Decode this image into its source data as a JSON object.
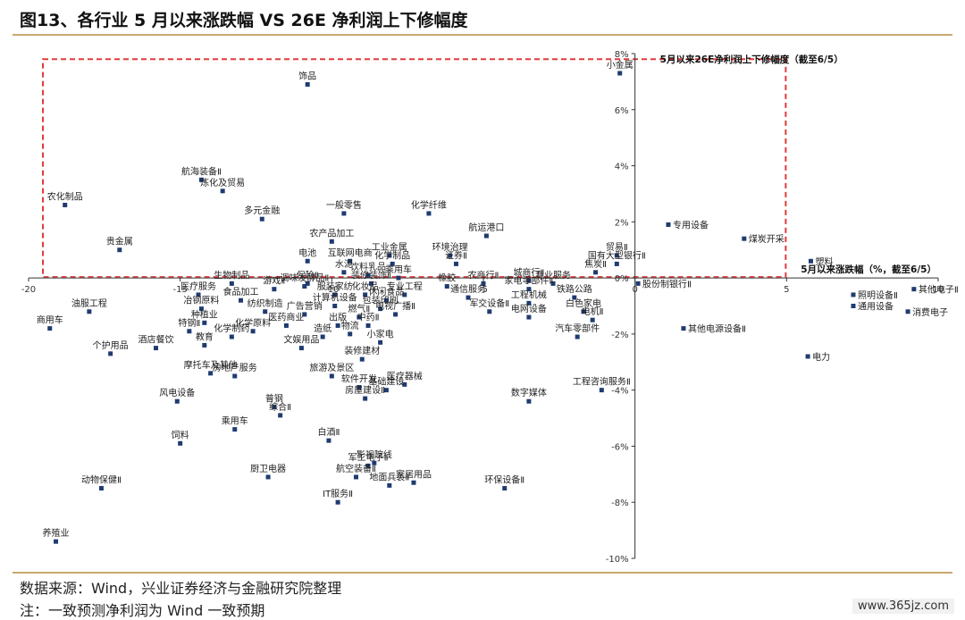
{
  "title": "图13、各行业 5 月以来涨跌幅  VS 26E 净利润上下修幅度",
  "source": "数据来源：Wind，兴业证券经济与金融研究院整理",
  "note": "注：一致预测净利润为 Wind 一致预期",
  "watermark": "www.365jz.com",
  "colors": {
    "point": "#1f3b70",
    "axis": "#333333",
    "highlight": "#e23b3b",
    "rule": "#c9a96e"
  },
  "chart_data": {
    "type": "scatter",
    "xlabel": "5月以来涨跌幅（%，截至6/5）",
    "ylabel": "5月以来26E净利润上下修幅度（截至6/5）",
    "xlim": [
      -20,
      10
    ],
    "ylim": [
      -10,
      8
    ],
    "xticks": [
      {
        "v": -20,
        "label": "-20"
      },
      {
        "v": -15,
        "label": "-15"
      },
      {
        "v": -10,
        "label": "-10"
      },
      {
        "v": -5,
        "label": "-5"
      },
      {
        "v": 0,
        "label": "0"
      },
      {
        "v": 5,
        "label": "5"
      },
      {
        "v": 10,
        "label": "10"
      }
    ],
    "yticks": [
      {
        "v": 8,
        "label": "8%"
      },
      {
        "v": 6,
        "label": "6%"
      },
      {
        "v": 4,
        "label": "4%"
      },
      {
        "v": 2,
        "label": "2%"
      },
      {
        "v": 0,
        "label": "0%"
      },
      {
        "v": -2,
        "label": "-2%"
      },
      {
        "v": -4,
        "label": "-4%"
      },
      {
        "v": -6,
        "label": "-6%"
      },
      {
        "v": -8,
        "label": "-8%"
      },
      {
        "v": -10,
        "label": "-10%"
      }
    ],
    "highlight_region": {
      "x": [
        -20,
        4.5
      ],
      "y": [
        0,
        7.8
      ]
    },
    "points": [
      {
        "name": "饰品",
        "x": -10.8,
        "y": 6.9
      },
      {
        "name": "小金属",
        "x": -0.5,
        "y": 7.3
      },
      {
        "name": "航海装备Ⅱ",
        "x": -14.3,
        "y": 3.5
      },
      {
        "name": "炼化及贸易",
        "x": -13.6,
        "y": 3.1
      },
      {
        "name": "农化制品",
        "x": -18.8,
        "y": 2.6
      },
      {
        "name": "多元金融",
        "x": -12.3,
        "y": 2.1
      },
      {
        "name": "一般零售",
        "x": -9.6,
        "y": 2.3
      },
      {
        "name": "化学纤维",
        "x": -6.8,
        "y": 2.3
      },
      {
        "name": "专用设备",
        "x": 1.1,
        "y": 1.9
      },
      {
        "name": "煤炭开采",
        "x": 3.6,
        "y": 1.4
      },
      {
        "name": "贵金属",
        "x": -17.0,
        "y": 1.0
      },
      {
        "name": "农产品加工",
        "x": -10.0,
        "y": 1.3
      },
      {
        "name": "航运港口",
        "x": -4.9,
        "y": 1.5
      },
      {
        "name": "环境治理",
        "x": -6.1,
        "y": 0.8
      },
      {
        "name": "工业金属",
        "x": -8.1,
        "y": 0.8
      },
      {
        "name": "电池",
        "x": -10.8,
        "y": 0.6
      },
      {
        "name": "互联网电商",
        "x": -9.4,
        "y": 0.6
      },
      {
        "name": "化学制品",
        "x": -8.0,
        "y": 0.5
      },
      {
        "name": "证券Ⅱ",
        "x": -5.9,
        "y": 0.5
      },
      {
        "name": "贸易Ⅱ",
        "x": -0.6,
        "y": 0.8
      },
      {
        "name": "国有大型银行Ⅱ",
        "x": -0.6,
        "y": 0.5
      },
      {
        "name": "塑料",
        "x": 5.8,
        "y": 0.6
      },
      {
        "name": "水泥",
        "x": -9.6,
        "y": 0.2
      },
      {
        "name": "饮料乳品",
        "x": -8.8,
        "y": 0.1
      },
      {
        "name": "乘用车",
        "x": -7.8,
        "y": 0.0
      },
      {
        "name": "焦炭Ⅱ",
        "x": -1.3,
        "y": 0.2
      },
      {
        "name": "城商行Ⅱ",
        "x": -3.5,
        "y": -0.1
      },
      {
        "name": "专业服务",
        "x": -2.7,
        "y": -0.2
      },
      {
        "name": "股份制银行Ⅱ",
        "x": 0.1,
        "y": -0.2
      },
      {
        "name": "生物制品",
        "x": -13.3,
        "y": -0.2
      },
      {
        "name": "保险Ⅱ",
        "x": -10.8,
        "y": -0.2
      },
      {
        "name": "调味发酵品Ⅱ",
        "x": -10.9,
        "y": -0.3
      },
      {
        "name": "装修装饰Ⅱ",
        "x": -8.7,
        "y": -0.2
      },
      {
        "name": "游戏Ⅱ",
        "x": -11.9,
        "y": -0.4
      },
      {
        "name": "农商行Ⅱ",
        "x": -5.0,
        "y": -0.2
      },
      {
        "name": "橡胶",
        "x": -6.2,
        "y": -0.3
      },
      {
        "name": "家电零部件Ⅱ",
        "x": -3.5,
        "y": -0.4
      },
      {
        "name": "医疗服务",
        "x": -14.4,
        "y": -0.6
      },
      {
        "name": "化妆品",
        "x": -8.9,
        "y": -0.6
      },
      {
        "name": "专业工程",
        "x": -7.6,
        "y": -0.6
      },
      {
        "name": "其他电子Ⅱ",
        "x": 9.2,
        "y": -0.4
      },
      {
        "name": "照明设备Ⅱ",
        "x": 7.2,
        "y": -0.6
      },
      {
        "name": "服装家纺",
        "x": -9.9,
        "y": -0.6
      },
      {
        "name": "铁路公路",
        "x": -2.0,
        "y": -0.7
      },
      {
        "name": "食品加工",
        "x": -13.0,
        "y": -0.8
      },
      {
        "name": "休闲食品",
        "x": -8.2,
        "y": -0.8
      },
      {
        "name": "通信服务",
        "x": -5.5,
        "y": -0.7
      },
      {
        "name": "工程机械",
        "x": -3.5,
        "y": -0.9
      },
      {
        "name": "冶钢原料",
        "x": -14.3,
        "y": -1.1
      },
      {
        "name": "纺织制造",
        "x": -12.2,
        "y": -1.2
      },
      {
        "name": "计算机设备",
        "x": -9.9,
        "y": -1.0
      },
      {
        "name": "包装印刷",
        "x": -8.4,
        "y": -1.1
      },
      {
        "name": "军交设备Ⅱ",
        "x": -4.8,
        "y": -1.2
      },
      {
        "name": "消费电子",
        "x": 9.0,
        "y": -1.2
      },
      {
        "name": "通用设备",
        "x": 7.2,
        "y": -1.0
      },
      {
        "name": "电视广播Ⅱ",
        "x": -7.9,
        "y": -1.3
      },
      {
        "name": "燃气Ⅱ",
        "x": -9.1,
        "y": -1.4
      },
      {
        "name": "广告营销",
        "x": -10.9,
        "y": -1.3
      },
      {
        "name": "白色家电",
        "x": -1.7,
        "y": -1.2
      },
      {
        "name": "电网设备",
        "x": -3.5,
        "y": -1.4
      },
      {
        "name": "种植业",
        "x": -14.2,
        "y": -1.6
      },
      {
        "name": "油服工程",
        "x": -18.0,
        "y": -1.2
      },
      {
        "name": "电机Ⅱ",
        "x": -1.4,
        "y": -1.5
      },
      {
        "name": "医药商业",
        "x": -11.5,
        "y": -1.7
      },
      {
        "name": "出版",
        "x": -9.8,
        "y": -1.7
      },
      {
        "name": "中药Ⅱ",
        "x": -8.8,
        "y": -1.7
      },
      {
        "name": "特钢Ⅱ",
        "x": -14.7,
        "y": -1.9
      },
      {
        "name": "化学原料",
        "x": -12.6,
        "y": -1.9
      },
      {
        "name": "物流",
        "x": -9.4,
        "y": -2.0
      },
      {
        "name": "商用车",
        "x": -19.3,
        "y": -1.8
      },
      {
        "name": "汽车零部件",
        "x": -1.9,
        "y": -2.1
      },
      {
        "name": "其他电源设备Ⅱ",
        "x": 1.6,
        "y": -1.8
      },
      {
        "name": "化学制药",
        "x": -13.3,
        "y": -2.1
      },
      {
        "name": "教育",
        "x": -14.2,
        "y": -2.4
      },
      {
        "name": "造纸",
        "x": -10.3,
        "y": -2.1
      },
      {
        "name": "小家电",
        "x": -8.4,
        "y": -2.3
      },
      {
        "name": "个护用品",
        "x": -17.3,
        "y": -2.7
      },
      {
        "name": "酒店餐饮",
        "x": -15.8,
        "y": -2.5
      },
      {
        "name": "文娱用品",
        "x": -11.0,
        "y": -2.5
      },
      {
        "name": "电力",
        "x": 5.7,
        "y": -2.8
      },
      {
        "name": "装修建材",
        "x": -9.0,
        "y": -2.9
      },
      {
        "name": "摩托车及其他",
        "x": -14.0,
        "y": -3.4
      },
      {
        "name": "房地产服务",
        "x": -13.2,
        "y": -3.5
      },
      {
        "name": "旅游及景区",
        "x": -10.0,
        "y": -3.5
      },
      {
        "name": "医疗器械",
        "x": -7.6,
        "y": -3.8
      },
      {
        "name": "工程咨询服务Ⅱ",
        "x": -1.1,
        "y": -4.0
      },
      {
        "name": "软件开发",
        "x": -9.1,
        "y": -3.9
      },
      {
        "name": "基础建设",
        "x": -8.2,
        "y": -4.0
      },
      {
        "name": "风电设备",
        "x": -15.1,
        "y": -4.4
      },
      {
        "name": "房屋建设Ⅱ",
        "x": -8.9,
        "y": -4.3
      },
      {
        "name": "数字媒体",
        "x": -3.5,
        "y": -4.4
      },
      {
        "name": "普钢",
        "x": -11.9,
        "y": -4.6
      },
      {
        "name": "综合Ⅱ",
        "x": -11.7,
        "y": -4.9
      },
      {
        "name": "乘用车",
        "x": -13.2,
        "y": -5.4
      },
      {
        "name": "白酒Ⅱ",
        "x": -10.1,
        "y": -5.8
      },
      {
        "name": "饲料",
        "x": -15.0,
        "y": -5.9
      },
      {
        "name": "影视院线",
        "x": -8.6,
        "y": -6.6
      },
      {
        "name": "军工电子Ⅱ",
        "x": -8.8,
        "y": -6.7
      },
      {
        "name": "厨卫电器",
        "x": -12.1,
        "y": -7.1
      },
      {
        "name": "航空装备Ⅱ",
        "x": -9.2,
        "y": -7.1
      },
      {
        "name": "家居用品",
        "x": -7.3,
        "y": -7.3
      },
      {
        "name": "地面兵装Ⅱ",
        "x": -8.1,
        "y": -7.4
      },
      {
        "name": "环保设备Ⅱ",
        "x": -4.3,
        "y": -7.5
      },
      {
        "name": "IT服务Ⅱ",
        "x": -9.8,
        "y": -8.0
      },
      {
        "name": "动物保健Ⅱ",
        "x": -17.6,
        "y": -7.5
      },
      {
        "name": "养殖业",
        "x": -19.1,
        "y": -9.4
      }
    ]
  }
}
